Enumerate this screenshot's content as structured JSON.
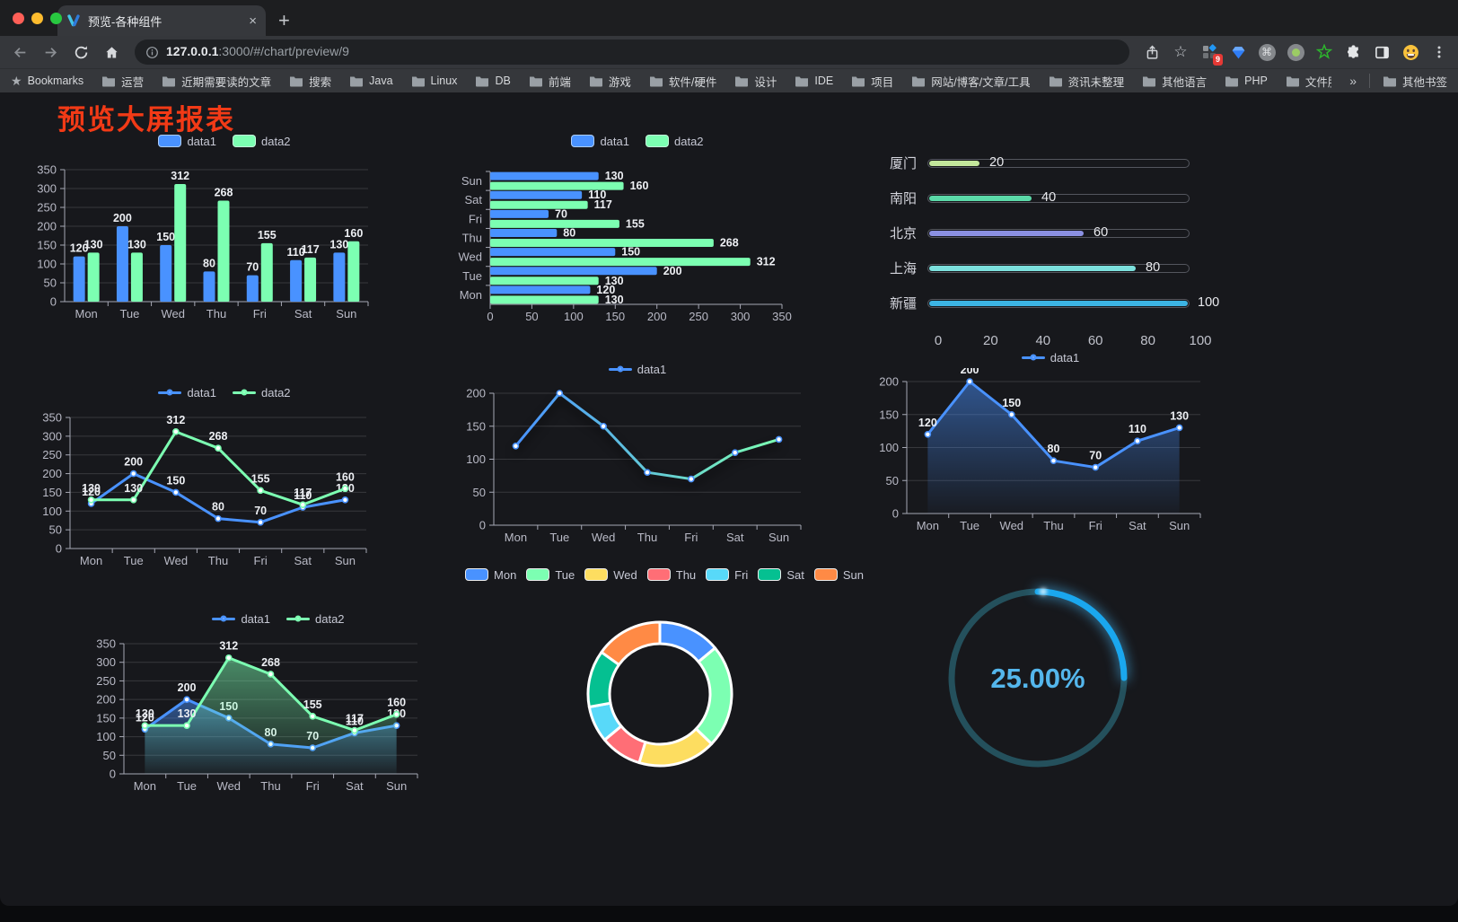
{
  "window": {
    "tab_title": "预览-各种组件",
    "tab_close": "×",
    "new_tab": "+",
    "url_host": "127.0.0.1",
    "url_rest": ":3000/#/chart/preview/9",
    "ext_badge": "9",
    "traffic_lights": [
      "#ff5f57",
      "#febc2e",
      "#28c840"
    ]
  },
  "bookmarks": {
    "label": "Bookmarks",
    "items": [
      "运营",
      "近期需要读的文章",
      "搜索",
      "Java",
      "Linux",
      "DB",
      "前端",
      "游戏",
      "软件/硬件",
      "设计",
      "IDE",
      "项目",
      "网站/博客/文章/工具",
      "资讯未整理",
      "其他语言",
      "PHP",
      "文件服务器"
    ],
    "overflow": "»",
    "other": "其他书签"
  },
  "page": {
    "title": "预览大屏报表"
  },
  "palette": {
    "blue": "#4992ff",
    "green": "#7cffb2",
    "yellow": "#fddd60",
    "red": "#ff6e76",
    "lightblue": "#58d9f9",
    "teal": "#05c091",
    "orange": "#ff8a45"
  },
  "chart_data": [
    {
      "id": "bar-vertical",
      "type": "bar",
      "title": "",
      "categories": [
        "Mon",
        "Tue",
        "Wed",
        "Thu",
        "Fri",
        "Sat",
        "Sun"
      ],
      "series": [
        {
          "name": "data1",
          "color": "#4992ff",
          "values": [
            120,
            200,
            150,
            80,
            70,
            110,
            130
          ]
        },
        {
          "name": "data2",
          "color": "#7cffb2",
          "values": [
            130,
            130,
            312,
            268,
            155,
            117,
            160
          ]
        }
      ],
      "ylabel": "",
      "ylim": [
        0,
        350
      ],
      "ytick": 50,
      "grid": true,
      "legend_position": "top",
      "value_labels": true
    },
    {
      "id": "bar-horizontal",
      "type": "bar",
      "orientation": "horizontal",
      "categories_bottom_to_top": [
        "Mon",
        "Tue",
        "Wed",
        "Thu",
        "Fri",
        "Sat",
        "Sun"
      ],
      "series": [
        {
          "name": "data1",
          "color": "#4992ff",
          "values": [
            120,
            200,
            150,
            80,
            70,
            110,
            130
          ]
        },
        {
          "name": "data2",
          "color": "#7cffb2",
          "values": [
            130,
            130,
            312,
            268,
            155,
            117,
            160
          ]
        }
      ],
      "xlim": [
        0,
        350
      ],
      "xtick": 50,
      "grid": false,
      "legend_position": "top",
      "value_labels": true
    },
    {
      "id": "progress-bars",
      "type": "bar",
      "orientation": "horizontal-progress",
      "rows": [
        {
          "label": "厦门",
          "value": 20,
          "color": "#c3e79b"
        },
        {
          "label": "南阳",
          "value": 40,
          "color": "#5bd9a8"
        },
        {
          "label": "北京",
          "value": 60,
          "color": "#8b90e2"
        },
        {
          "label": "上海",
          "value": 80,
          "color": "#7ce0dd"
        },
        {
          "label": "新疆",
          "value": 100,
          "color": "#3cb4e4"
        }
      ],
      "xlim": [
        0,
        100
      ],
      "xticks": [
        0,
        20,
        40,
        60,
        80,
        100
      ],
      "value_labels": true
    },
    {
      "id": "line-basic",
      "type": "line",
      "categories": [
        "Mon",
        "Tue",
        "Wed",
        "Thu",
        "Fri",
        "Sat",
        "Sun"
      ],
      "series": [
        {
          "name": "data1",
          "color": "#4992ff",
          "values": [
            120,
            200,
            150,
            80,
            70,
            110,
            130
          ]
        },
        {
          "name": "data2",
          "color": "#7cffb2",
          "values": [
            130,
            130,
            312,
            268,
            155,
            117,
            160
          ]
        }
      ],
      "ylim": [
        0,
        350
      ],
      "ytick": 50,
      "legend_position": "top",
      "value_labels": true
    },
    {
      "id": "line-gradient",
      "type": "line",
      "categories": [
        "Mon",
        "Tue",
        "Wed",
        "Thu",
        "Fri",
        "Sat",
        "Sun"
      ],
      "series": [
        {
          "name": "data1",
          "gradient": [
            "#4992ff",
            "#7cffb2"
          ],
          "color": "#4992ff",
          "values": [
            120,
            200,
            150,
            80,
            70,
            110,
            130
          ]
        }
      ],
      "ylim": [
        0,
        200
      ],
      "ytick": 50,
      "legend_position": "top",
      "value_labels": false
    },
    {
      "id": "line-area-single",
      "type": "area",
      "categories": [
        "Mon",
        "Tue",
        "Wed",
        "Thu",
        "Fri",
        "Sat",
        "Sun"
      ],
      "series": [
        {
          "name": "data1",
          "color": "#4992ff",
          "values": [
            120,
            200,
            150,
            80,
            70,
            110,
            130
          ]
        }
      ],
      "ylim": [
        0,
        200
      ],
      "ytick": 50,
      "legend_position": "top",
      "value_labels": true
    },
    {
      "id": "line-area-double",
      "type": "area",
      "categories": [
        "Mon",
        "Tue",
        "Wed",
        "Thu",
        "Fri",
        "Sat",
        "Sun"
      ],
      "series": [
        {
          "name": "data1",
          "color": "#4992ff",
          "values": [
            120,
            200,
            150,
            80,
            70,
            110,
            130
          ]
        },
        {
          "name": "data2",
          "color": "#7cffb2",
          "values": [
            130,
            130,
            312,
            268,
            155,
            117,
            160
          ]
        }
      ],
      "ylim": [
        0,
        350
      ],
      "ytick": 50,
      "legend_position": "top",
      "value_labels": true
    },
    {
      "id": "donut",
      "type": "pie",
      "labels": [
        "Mon",
        "Tue",
        "Wed",
        "Thu",
        "Fri",
        "Sat",
        "Sun"
      ],
      "values": [
        120,
        200,
        150,
        80,
        70,
        110,
        130
      ],
      "colors": [
        "#4992ff",
        "#7cffb2",
        "#fddd60",
        "#ff6e76",
        "#58d9f9",
        "#05c091",
        "#ff8a45"
      ],
      "inner_radius_pct": 70,
      "border_color": "#ffffff",
      "legend_position": "top"
    },
    {
      "id": "gauge",
      "type": "gauge",
      "value": 25,
      "max": 100,
      "display": "25.00%",
      "color": "#1aa7ee",
      "track_color": "#24505c",
      "text_color": "#54b6ec"
    }
  ]
}
